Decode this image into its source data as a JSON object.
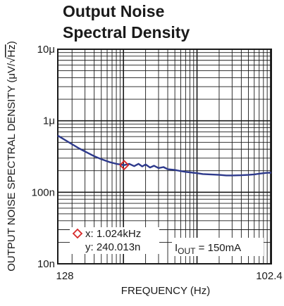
{
  "chart_data": {
    "type": "line",
    "title": [
      "Output Noise",
      "Spectral Density"
    ],
    "xlabel": "FREQUENCY (Hz)",
    "ylabel": {
      "main": "OUTPUT NOISE SPECTRAL DENSITY (μV/√",
      "radicand": "Hz",
      "close": ")"
    },
    "x_scale": "log",
    "y_scale": "log",
    "xlim": [
      128,
      102400
    ],
    "ylim": [
      1e-08,
      1e-05
    ],
    "x_tick_labels": [
      "128",
      "102.4"
    ],
    "y_ticks": [
      {
        "value": 1e-05,
        "label": "10μ"
      },
      {
        "value": 1e-06,
        "label": "1μ"
      },
      {
        "value": 1e-07,
        "label": "100n"
      },
      {
        "value": 1e-08,
        "label": "10n"
      }
    ],
    "grid": true,
    "series": [
      {
        "color": "#2e3a8c",
        "x": [
          128,
          160,
          200,
          250,
          320,
          400,
          500,
          640,
          800,
          1024,
          1200,
          1400,
          1600,
          1800,
          2000,
          2300,
          2600,
          3000,
          3500,
          4000,
          5000,
          6000,
          7000,
          8000,
          10000,
          12000,
          15000,
          20000,
          25000,
          30000,
          40000,
          50000,
          60000,
          70000,
          80000,
          90000,
          102400
        ],
        "y": [
          6.2e-07,
          5.4e-07,
          4.7e-07,
          4.1e-07,
          3.6e-07,
          3.2e-07,
          2.9e-07,
          2.65e-07,
          2.5e-07,
          2.4e-07,
          2.5e-07,
          2.32e-07,
          2.5e-07,
          2.3e-07,
          2.45e-07,
          2.22e-07,
          2.35e-07,
          2.18e-07,
          2.25e-07,
          2.1e-07,
          2.05e-07,
          1.98e-07,
          1.93e-07,
          1.9e-07,
          1.85e-07,
          1.8e-07,
          1.78e-07,
          1.75e-07,
          1.72e-07,
          1.72e-07,
          1.73e-07,
          1.75e-07,
          1.78e-07,
          1.82e-07,
          1.85e-07,
          1.87e-07,
          1.88e-07
        ]
      }
    ],
    "marker": {
      "x": 1024,
      "y": 2.40013e-07,
      "label_x": "x: 1.024kHz",
      "label_y": "y: 240.013n",
      "color": "#d62828"
    },
    "annotation": {
      "prefix": "I",
      "subscript": "OUT",
      "suffix": " = 150mA"
    }
  }
}
